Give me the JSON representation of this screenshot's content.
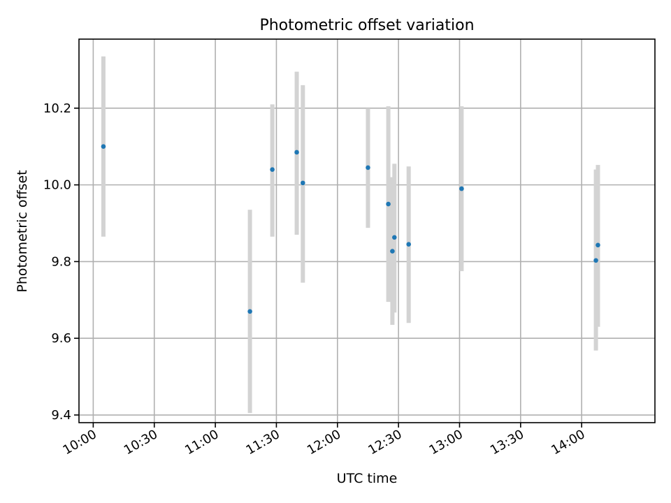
{
  "chart_data": {
    "type": "scatter",
    "title": "Photometric offset variation",
    "xlabel": "UTC time",
    "ylabel": "Photometric offset",
    "xlim": [
      "09:53",
      "14:36"
    ],
    "ylim": [
      9.38,
      10.38
    ],
    "xticks": [
      "10:00",
      "10:30",
      "11:00",
      "11:30",
      "12:00",
      "12:30",
      "13:00",
      "13:30",
      "14:00"
    ],
    "yticks": [
      9.4,
      9.6,
      9.8,
      10.0,
      10.2
    ],
    "ytick_labels": [
      "9.4",
      "9.6",
      "9.8",
      "10.0",
      "10.2"
    ],
    "grid": true,
    "marker_color": "#1f77b4",
    "errorbar_color": "#d3d3d3",
    "points": [
      {
        "time": "10:05",
        "value": 10.1,
        "err_low": 9.865,
        "err_high": 10.335
      },
      {
        "time": "11:17",
        "value": 9.67,
        "err_low": 9.405,
        "err_high": 9.935
      },
      {
        "time": "11:28",
        "value": 10.04,
        "err_low": 9.865,
        "err_high": 10.21
      },
      {
        "time": "11:40",
        "value": 10.085,
        "err_low": 9.87,
        "err_high": 10.295
      },
      {
        "time": "11:43",
        "value": 10.005,
        "err_low": 9.745,
        "err_high": 10.26
      },
      {
        "time": "12:15",
        "value": 10.045,
        "err_low": 9.888,
        "err_high": 10.2
      },
      {
        "time": "12:25",
        "value": 9.95,
        "err_low": 9.695,
        "err_high": 10.205
      },
      {
        "time": "12:27",
        "value": 9.827,
        "err_low": 9.635,
        "err_high": 10.02
      },
      {
        "time": "12:28",
        "value": 9.863,
        "err_low": 9.667,
        "err_high": 10.055
      },
      {
        "time": "12:35",
        "value": 9.845,
        "err_low": 9.64,
        "err_high": 10.048
      },
      {
        "time": "13:01",
        "value": 9.99,
        "err_low": 9.775,
        "err_high": 10.205
      },
      {
        "time": "14:07",
        "value": 9.803,
        "err_low": 9.568,
        "err_high": 10.04
      },
      {
        "time": "14:08",
        "value": 9.843,
        "err_low": 9.63,
        "err_high": 10.052
      }
    ]
  }
}
